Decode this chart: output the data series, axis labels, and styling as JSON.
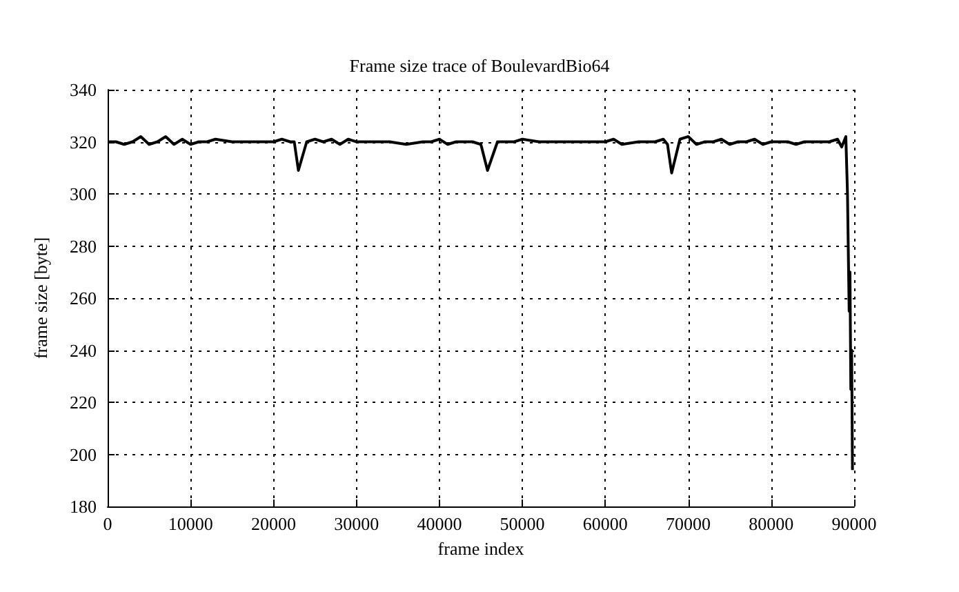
{
  "chart_data": {
    "type": "line",
    "title": "Frame size trace of BoulevardBio64",
    "xlabel": "frame index",
    "ylabel": "frame size [byte]",
    "x": [
      0,
      1000,
      2000,
      3000,
      4000,
      5000,
      6000,
      7000,
      8000,
      9000,
      10000,
      11000,
      12000,
      13000,
      15000,
      17000,
      19000,
      20000,
      21000,
      22000,
      22500,
      23000,
      24000,
      25000,
      26000,
      27000,
      28000,
      29000,
      30000,
      32000,
      34000,
      36000,
      38000,
      39000,
      40000,
      41000,
      42000,
      43000,
      44000,
      45000,
      45800,
      47000,
      48000,
      49000,
      50000,
      52000,
      54000,
      56000,
      58000,
      60000,
      61000,
      62000,
      64000,
      66000,
      67000,
      67500,
      68000,
      69000,
      70000,
      71000,
      72000,
      73000,
      74000,
      75000,
      76000,
      77000,
      78000,
      79000,
      80000,
      82000,
      83000,
      84000,
      86000,
      87000,
      88000,
      88500,
      89000,
      89200,
      89400,
      89500,
      89600,
      89700,
      89800
    ],
    "series": [
      {
        "color": "#000000",
        "values": [
          320,
          320,
          319,
          320,
          322,
          319,
          320,
          322,
          319,
          321,
          319,
          320,
          320,
          321,
          320,
          320,
          320,
          320,
          321,
          320,
          320,
          309,
          320,
          321,
          320,
          321,
          319,
          321,
          320,
          320,
          320,
          319,
          320,
          320,
          321,
          319,
          320,
          320,
          320,
          319,
          309,
          320,
          320,
          320,
          321,
          320,
          320,
          320,
          320,
          320,
          321,
          319,
          320,
          320,
          321,
          319,
          308,
          321,
          322,
          319,
          320,
          320,
          321,
          319,
          320,
          320,
          321,
          319,
          320,
          320,
          319,
          320,
          320,
          320,
          321,
          318,
          322,
          300,
          255,
          270,
          225,
          240,
          194
        ]
      }
    ],
    "xlim": [
      0,
      90000
    ],
    "ylim": [
      180,
      340
    ],
    "xticks": [
      0,
      10000,
      20000,
      30000,
      40000,
      50000,
      60000,
      70000,
      80000,
      90000
    ],
    "yticks": [
      180,
      200,
      220,
      240,
      260,
      280,
      300,
      320,
      340
    ],
    "grid": true,
    "marker": "none",
    "line_style": "solid"
  }
}
